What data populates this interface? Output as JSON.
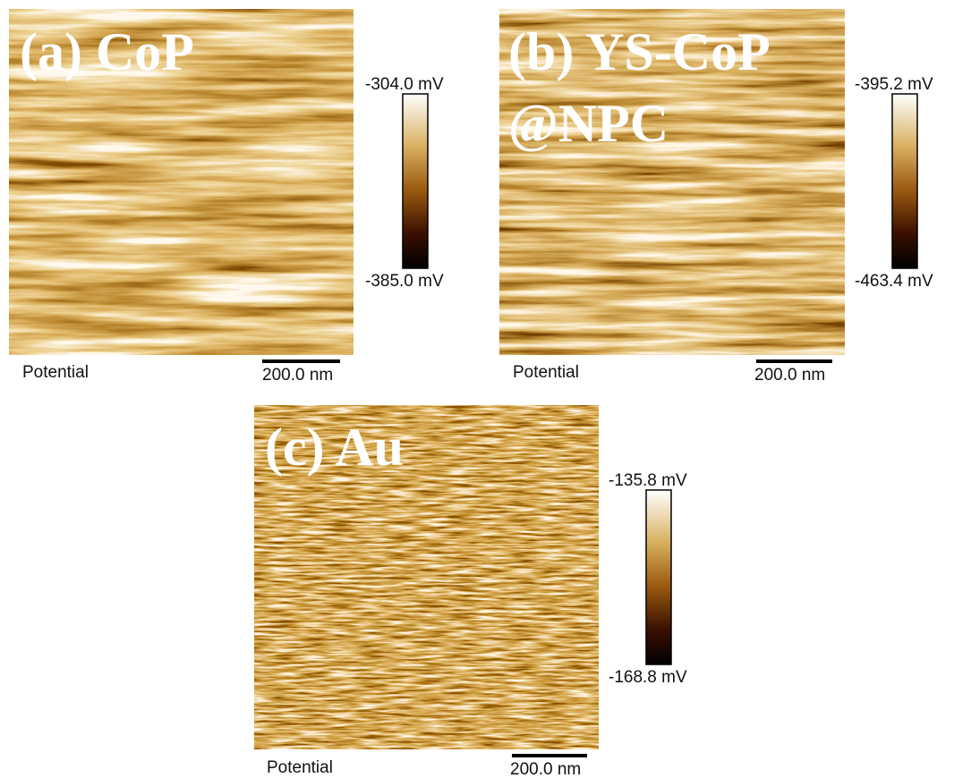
{
  "panels": [
    {
      "label_lines": [
        "(a) CoP"
      ],
      "color_max": "-304.0 mV",
      "color_min": "-385.0 mV",
      "channel": "Potential",
      "scale_bar": "200.0 nm"
    },
    {
      "label_lines": [
        "(b) YS-CoP",
        "@NPC"
      ],
      "color_max": "-395.2 mV",
      "color_min": "-463.4 mV",
      "channel": "Potential",
      "scale_bar": "200.0 nm"
    },
    {
      "label_lines": [
        "(c) Au"
      ],
      "color_max": "-135.8 mV",
      "color_min": "-168.8 mV",
      "channel": "Potential",
      "scale_bar": "200.0 nm"
    }
  ]
}
